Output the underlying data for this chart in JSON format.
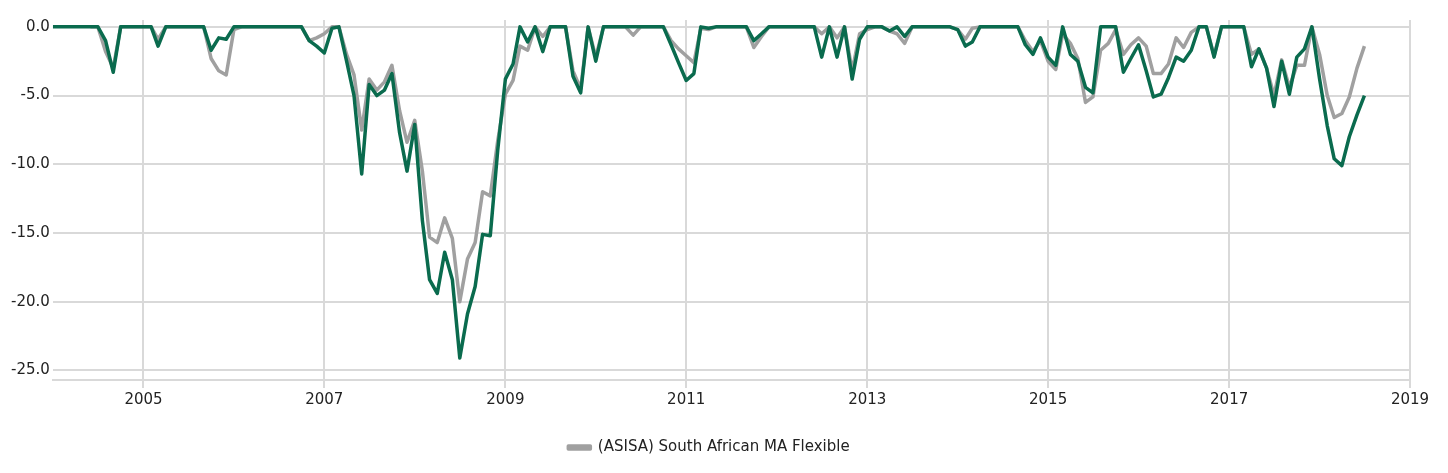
{
  "chart_data": {
    "type": "line",
    "x": [
      "2004-01",
      "2004-02",
      "2004-03",
      "2004-04",
      "2004-05",
      "2004-06",
      "2004-07",
      "2004-08",
      "2004-09",
      "2004-10",
      "2004-11",
      "2004-12",
      "2005-01",
      "2005-02",
      "2005-03",
      "2005-04",
      "2005-05",
      "2005-06",
      "2005-07",
      "2005-08",
      "2005-09",
      "2005-10",
      "2005-11",
      "2005-12",
      "2006-01",
      "2006-02",
      "2006-03",
      "2006-04",
      "2006-05",
      "2006-06",
      "2006-07",
      "2006-08",
      "2006-09",
      "2006-10",
      "2006-11",
      "2006-12",
      "2007-01",
      "2007-02",
      "2007-03",
      "2007-04",
      "2007-05",
      "2007-06",
      "2007-07",
      "2007-08",
      "2007-09",
      "2007-10",
      "2007-11",
      "2007-12",
      "2008-01",
      "2008-02",
      "2008-03",
      "2008-04",
      "2008-05",
      "2008-06",
      "2008-07",
      "2008-08",
      "2008-09",
      "2008-10",
      "2008-11",
      "2008-12",
      "2009-01",
      "2009-02",
      "2009-03",
      "2009-04",
      "2009-05",
      "2009-06",
      "2009-07",
      "2009-08",
      "2009-09",
      "2009-10",
      "2009-11",
      "2009-12",
      "2010-01",
      "2010-02",
      "2010-03",
      "2010-04",
      "2010-05",
      "2010-06",
      "2010-07",
      "2010-08",
      "2010-09",
      "2010-10",
      "2010-11",
      "2010-12",
      "2011-01",
      "2011-02",
      "2011-03",
      "2011-04",
      "2011-05",
      "2011-06",
      "2011-07",
      "2011-08",
      "2011-09",
      "2011-10",
      "2011-11",
      "2011-12",
      "2012-01",
      "2012-02",
      "2012-03",
      "2012-04",
      "2012-05",
      "2012-06",
      "2012-07",
      "2012-08",
      "2012-09",
      "2012-10",
      "2012-11",
      "2012-12",
      "2013-01",
      "2013-02",
      "2013-03",
      "2013-04",
      "2013-05",
      "2013-06",
      "2013-07",
      "2013-08",
      "2013-09",
      "2013-10",
      "2013-11",
      "2013-12",
      "2014-01",
      "2014-02",
      "2014-03",
      "2014-04",
      "2014-05",
      "2014-06",
      "2014-07",
      "2014-08",
      "2014-09",
      "2014-10",
      "2014-11",
      "2014-12",
      "2015-01",
      "2015-02",
      "2015-03",
      "2015-04",
      "2015-05",
      "2015-06",
      "2015-07",
      "2015-08",
      "2015-09",
      "2015-10",
      "2015-11",
      "2015-12",
      "2016-01",
      "2016-02",
      "2016-03",
      "2016-04",
      "2016-05",
      "2016-06",
      "2016-07",
      "2016-08",
      "2016-09",
      "2016-10",
      "2016-11",
      "2016-12",
      "2017-01",
      "2017-02",
      "2017-03",
      "2017-04",
      "2017-05",
      "2017-06",
      "2017-07",
      "2017-08",
      "2017-09",
      "2017-10",
      "2017-11",
      "2017-12",
      "2018-01",
      "2018-02",
      "2018-03",
      "2018-04",
      "2018-05",
      "2018-06",
      "2018-07"
    ],
    "series": [
      {
        "color": "#0a6b4e",
        "values": [
          0,
          0,
          0,
          0,
          0,
          0,
          0,
          -1.0,
          -3.3,
          0,
          0,
          0,
          0,
          0,
          -1.4,
          0,
          0,
          0,
          0,
          0,
          0,
          -1.7,
          -0.8,
          -0.9,
          0,
          0,
          0,
          0,
          0,
          0,
          0,
          0,
          0,
          0,
          -1.0,
          -1.4,
          -1.9,
          -0.1,
          0,
          -2.5,
          -5.0,
          -10.7,
          -4.2,
          -5.0,
          -4.6,
          -3.4,
          -7.7,
          -10.5,
          -7.1,
          -14.1,
          -18.4,
          -19.4,
          -16.4,
          -18.4,
          -24.1,
          -20.9,
          -18.9,
          -15.1,
          -15.2,
          -9.0,
          -3.8,
          -2.7,
          0,
          -1.1,
          0,
          -1.8,
          0,
          0,
          0,
          -3.6,
          -4.8,
          0,
          -2.5,
          0,
          0,
          0,
          0,
          0,
          0,
          0,
          0,
          0,
          -1.3,
          -2.6,
          -3.9,
          -3.4,
          0,
          -0.1,
          0,
          0,
          0,
          0,
          0,
          -1.0,
          -0.5,
          0,
          0,
          0,
          0,
          0,
          0,
          0,
          -2.2,
          0,
          -2.2,
          0,
          -3.8,
          -0.9,
          0,
          0,
          0,
          -0.3,
          0,
          -0.7,
          0,
          0,
          0,
          0,
          0,
          0,
          -0.2,
          -1.4,
          -1.1,
          0,
          0,
          0,
          0,
          0,
          0,
          -1.3,
          -2.0,
          -0.8,
          -2.2,
          -2.8,
          0,
          -2.0,
          -2.5,
          -4.4,
          -4.8,
          0,
          0,
          0,
          -3.3,
          -2.3,
          -1.3,
          -3.2,
          -5.1,
          -4.9,
          -3.7,
          -2.2,
          -2.5,
          -1.7,
          0,
          0,
          -2.2,
          0,
          0,
          0,
          0,
          -2.9,
          -1.6,
          -3.0,
          -5.8,
          -2.5,
          -4.9,
          -2.2,
          -1.6,
          0,
          -3.8,
          -7.2,
          -9.6,
          -10.1,
          -8.0,
          -6.4,
          -5.0
        ]
      },
      {
        "name": "(ASISA) South African MA Flexible",
        "color": "#a0a0a0",
        "values": [
          null,
          null,
          null,
          null,
          null,
          0,
          0,
          -1.8,
          -3.0,
          0,
          0,
          0,
          0,
          0,
          -0.9,
          0,
          0,
          0,
          0,
          0,
          0,
          -2.3,
          -3.2,
          -3.5,
          -0.2,
          0,
          0,
          0,
          0,
          0,
          0,
          0,
          0,
          0,
          -1.0,
          -0.8,
          -0.5,
          0,
          0,
          -2.0,
          -3.5,
          -7.5,
          -3.8,
          -4.6,
          -4.0,
          -2.8,
          -6.1,
          -8.4,
          -6.8,
          -10.5,
          -15.3,
          -15.7,
          -13.9,
          -15.4,
          -20.0,
          -16.9,
          -15.7,
          -12.0,
          -12.3,
          -8.3,
          -4.9,
          -3.9,
          -1.4,
          -1.7,
          0,
          -0.7,
          0,
          0,
          0,
          -3.2,
          -4.5,
          0,
          -2.2,
          0,
          0,
          0,
          0,
          -0.6,
          0,
          0,
          0,
          0,
          -1.0,
          -1.6,
          -2.1,
          -2.6,
          -0.1,
          -0.2,
          0,
          0,
          0,
          0,
          0,
          -1.5,
          -0.7,
          0,
          0,
          0,
          0,
          0,
          0,
          0,
          -0.5,
          0,
          -0.8,
          0,
          -3.2,
          -0.5,
          -0.2,
          0,
          0,
          -0.3,
          -0.5,
          -1.2,
          0,
          0,
          0,
          0,
          0,
          0,
          -0.2,
          -0.9,
          -0.1,
          0,
          0,
          0,
          0,
          0,
          0,
          -1.0,
          -1.8,
          -1.0,
          -2.5,
          -3.1,
          -0.5,
          -1.2,
          -2.3,
          -5.5,
          -5.1,
          -1.7,
          -1.2,
          -0.2,
          -2.0,
          -1.3,
          -0.8,
          -1.4,
          -3.4,
          -3.4,
          -2.7,
          -0.8,
          -1.5,
          -0.4,
          0,
          0,
          -2.1,
          0,
          0,
          0,
          0,
          -2.0,
          -1.6,
          -3.0,
          -5.0,
          -2.4,
          -4.4,
          -2.8,
          -2.8,
          0,
          -2.0,
          -5.0,
          -6.6,
          -6.3,
          -5.1,
          -3.0,
          -1.4
        ]
      }
    ],
    "xlim": [
      "2004-01",
      "2019-01"
    ],
    "xticks": [
      "2005",
      "2007",
      "2009",
      "2011",
      "2013",
      "2015",
      "2017",
      "2019"
    ],
    "ylim": [
      -25.7,
      0.5
    ],
    "yticks": [
      {
        "value": 0,
        "label": "0.0"
      },
      {
        "value": -5,
        "label": "-5.0"
      },
      {
        "value": -10,
        "label": "-10.0"
      },
      {
        "value": -15,
        "label": "-15.0"
      },
      {
        "value": -20,
        "label": "-20.0"
      },
      {
        "value": -25,
        "label": "-25.0"
      }
    ],
    "grid": true,
    "legend": "bottom",
    "marker": "none",
    "line_style": "solid"
  }
}
